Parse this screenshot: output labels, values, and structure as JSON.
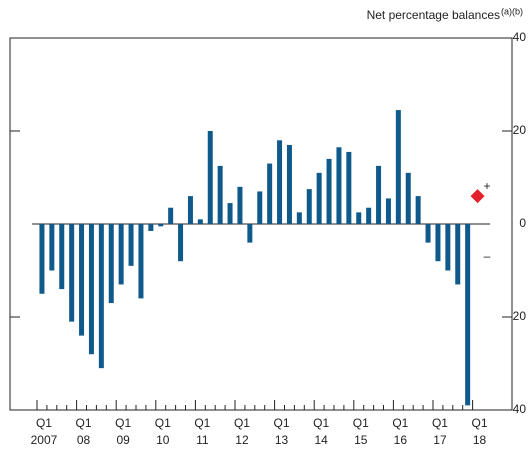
{
  "chart_data": {
    "type": "bar",
    "title": "Net percentage balances",
    "title_note": "(a)(b)",
    "categories": [
      "Q1",
      null,
      null,
      null,
      "Q1",
      null,
      null,
      null,
      "Q1",
      null,
      null,
      null,
      "Q1",
      null,
      null,
      null,
      "Q1",
      null,
      null,
      null,
      "Q1",
      null,
      null,
      null,
      "Q1",
      null,
      null,
      null,
      "Q1",
      null,
      null,
      null,
      "Q1",
      null,
      null,
      null,
      "Q1",
      null,
      null,
      null,
      "Q1",
      null,
      null,
      null,
      "Q1"
    ],
    "years": [
      "2007",
      "08",
      "09",
      "10",
      "11",
      "12",
      "13",
      "14",
      "15",
      "16",
      "17",
      "18"
    ],
    "series": [
      {
        "type": "bar",
        "color": "#0f5a8a",
        "values": [
          -15,
          -10,
          -14,
          -21,
          -24,
          -28,
          -31,
          -17,
          -13,
          -9,
          -16,
          -1.5,
          -0.5,
          3.5,
          -8,
          6,
          1,
          20,
          12.5,
          4.5,
          8,
          -4,
          7,
          13,
          18,
          17,
          2.5,
          7.5,
          11,
          14,
          16.5,
          15.5,
          2.5,
          3.5,
          12.5,
          5.5,
          24.5,
          11,
          6,
          -4,
          -8,
          -10,
          -13,
          -39,
          null
        ]
      },
      {
        "type": "diamond",
        "color": "#e4202a",
        "values": [
          null,
          null,
          null,
          null,
          null,
          null,
          null,
          null,
          null,
          null,
          null,
          null,
          null,
          null,
          null,
          null,
          null,
          null,
          null,
          null,
          null,
          null,
          null,
          null,
          null,
          null,
          null,
          null,
          null,
          null,
          null,
          null,
          null,
          null,
          null,
          null,
          null,
          null,
          null,
          null,
          null,
          null,
          null,
          null,
          6
        ]
      }
    ],
    "ylim": [
      -40,
      40
    ],
    "yticks": [
      {
        "value": -40,
        "label": "40"
      },
      {
        "value": -20,
        "label": "20"
      },
      0,
      20,
      40
    ],
    "annotations": [
      "+",
      "–"
    ]
  }
}
